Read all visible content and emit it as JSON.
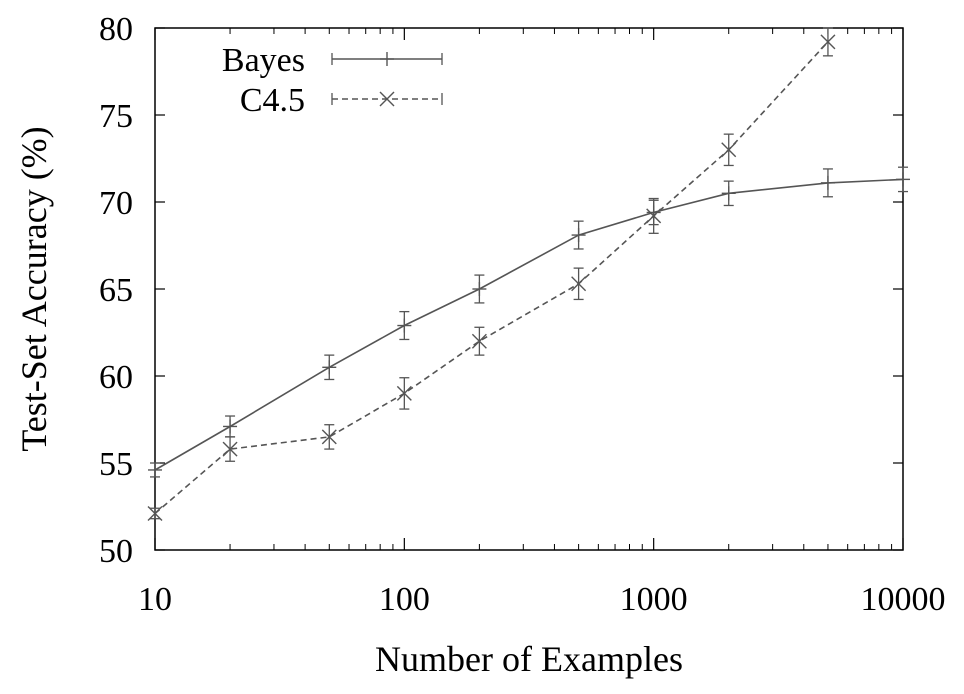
{
  "chart_data": {
    "type": "line",
    "title": "",
    "xlabel": "Number of Examples",
    "ylabel": "Test-Set Accuracy (%)",
    "x_scale": "log",
    "xlim": [
      10,
      10000
    ],
    "ylim": [
      50,
      80
    ],
    "x_ticks": [
      10,
      100,
      1000,
      10000
    ],
    "x_tick_labels": [
      "10",
      "100",
      "1000",
      "10000"
    ],
    "y_ticks": [
      50,
      55,
      60,
      65,
      70,
      75,
      80
    ],
    "y_tick_labels": [
      "50",
      "55",
      "60",
      "65",
      "70",
      "75",
      "80"
    ],
    "grid": false,
    "legend_position": "top-left",
    "series": [
      {
        "name": "Bayes",
        "style": "solid",
        "marker": "+",
        "color": "#555555",
        "x": [
          10,
          20,
          50,
          100,
          200,
          500,
          1000,
          2000,
          5000,
          10000
        ],
        "y": [
          54.6,
          57.1,
          60.5,
          62.9,
          65.0,
          68.1,
          69.4,
          70.5,
          71.1,
          71.3
        ],
        "error": [
          0.4,
          0.6,
          0.7,
          0.8,
          0.8,
          0.8,
          0.7,
          0.7,
          0.8,
          0.7
        ]
      },
      {
        "name": "C4.5",
        "style": "dashed",
        "marker": "x",
        "color": "#555555",
        "x": [
          10,
          20,
          50,
          100,
          200,
          500,
          1000,
          2000,
          5000
        ],
        "y": [
          52.1,
          55.8,
          56.5,
          59.0,
          62.0,
          65.3,
          69.2,
          73.0,
          79.2
        ],
        "error": [
          0.3,
          0.7,
          0.7,
          0.9,
          0.8,
          0.9,
          1.0,
          0.9,
          0.8
        ]
      }
    ]
  }
}
